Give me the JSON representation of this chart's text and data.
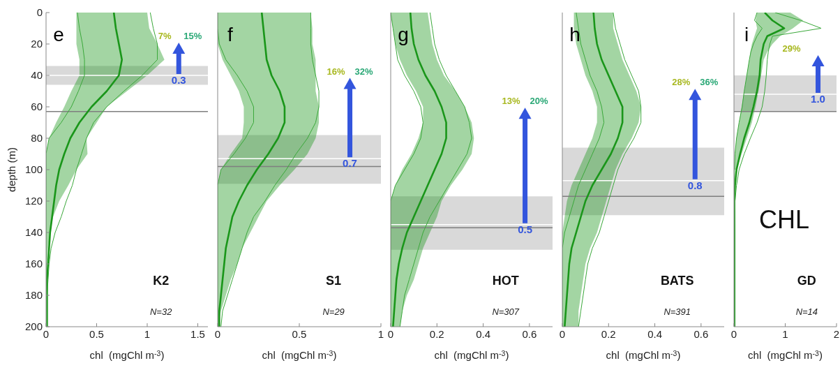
{
  "chart_data": [
    {
      "type": "line",
      "orientation": "horizontal",
      "title": "K2",
      "xlabel": "chl  (mgChl m$^{-3}$)",
      "ylabel": "depth (m)",
      "x": [
        0,
        10,
        20,
        30,
        40,
        50,
        60,
        70,
        80,
        90,
        100,
        110,
        120,
        130,
        140,
        150,
        160,
        170,
        180,
        190,
        200
      ],
      "series": [
        {
          "color": "#1a961a",
          "values": [
            0.67,
            0.69,
            0.72,
            0.75,
            0.72,
            0.6,
            0.45,
            0.33,
            0.24,
            0.18,
            0.13,
            0.1,
            0.08,
            0.06,
            0.04,
            0.03,
            0.02,
            0.01,
            0.01,
            0.01,
            0.01
          ],
          "lower": [
            0.3,
            0.3,
            0.3,
            0.33,
            0.33,
            0.25,
            0.18,
            0.1,
            0.03,
            0,
            0,
            0,
            0,
            0,
            0,
            0,
            0,
            0,
            0,
            0,
            0
          ],
          "upper": [
            1.0,
            1.02,
            1.1,
            1.17,
            1.0,
            0.8,
            0.6,
            0.5,
            0.4,
            0.41,
            0.3,
            0.22,
            0.13,
            0.07,
            0.04,
            0.02,
            0.01,
            0.01,
            0.01,
            0.01,
            0.01
          ]
        },
        {
          "color": "#3aa83a",
          "values": [
            0.31,
            0.33,
            0.36,
            0.38,
            0.38,
            0.32,
            0.25,
            0.15,
            0.03,
            0,
            0,
            0,
            0,
            0,
            0,
            0,
            0,
            0,
            0,
            0,
            0
          ]
        },
        {
          "color": "#3aa83a",
          "values": [
            1.03,
            1.06,
            1.1,
            1.1,
            0.95,
            0.77,
            0.6,
            0.47,
            0.4,
            0.35,
            0.3,
            0.26,
            0.2,
            0.15,
            0.09,
            0.05,
            0.03,
            0.02,
            0.01,
            0.01,
            0.01
          ]
        }
      ],
      "xlim": [
        0,
        1.6
      ],
      "xticks": [
        0,
        0.5,
        1,
        1.5
      ],
      "ylim": [
        200,
        0
      ],
      "yticks": [
        0,
        20,
        40,
        60,
        80,
        100,
        120,
        140,
        160,
        180,
        200
      ],
      "bands": [
        {
          "axis": "y",
          "from": 34,
          "to": 46,
          "color": "#d9d9d9"
        }
      ],
      "ref_lines": [
        {
          "axis": "y",
          "value": 40,
          "color": "#ffffff"
        },
        {
          "axis": "y",
          "value": 63,
          "color": "#7f7f7f"
        }
      ],
      "annotations": [
        "e",
        "N=32",
        "7%",
        "15%",
        "0.3"
      ]
    },
    {
      "type": "line",
      "orientation": "horizontal",
      "title": "S1",
      "xlabel": "chl  (mgChl m$^{-3}$)",
      "tick_labels": "x",
      "x": [
        0,
        10,
        20,
        30,
        40,
        50,
        60,
        70,
        80,
        90,
        100,
        110,
        120,
        130,
        140,
        150,
        160,
        170,
        180,
        190,
        200
      ],
      "series": [
        {
          "color": "#1a961a",
          "values": [
            0.27,
            0.28,
            0.29,
            0.3,
            0.33,
            0.38,
            0.41,
            0.41,
            0.37,
            0.31,
            0.24,
            0.18,
            0.13,
            0.09,
            0.07,
            0.05,
            0.04,
            0.03,
            0.02,
            0.01,
            0.01
          ],
          "lower": [
            0,
            0,
            0,
            0.03,
            0.08,
            0.13,
            0.16,
            0.16,
            0.15,
            0.08,
            0.02,
            0,
            0,
            0,
            0,
            0,
            0,
            0,
            0,
            0,
            0
          ],
          "upper": [
            0.57,
            0.58,
            0.58,
            0.6,
            0.6,
            0.6,
            0.62,
            0.62,
            0.6,
            0.55,
            0.47,
            0.38,
            0.3,
            0.25,
            0.2,
            0.15,
            0.12,
            0.08,
            0.05,
            0.02,
            0
          ]
        },
        {
          "color": "#3aa83a",
          "values": [
            0,
            0,
            0.01,
            0.05,
            0.12,
            0.18,
            0.22,
            0.22,
            0.17,
            0.1,
            0.02,
            0,
            0,
            0,
            0,
            0,
            0,
            0,
            0,
            0,
            0
          ]
        },
        {
          "color": "#3aa83a",
          "values": [
            0.57,
            0.57,
            0.57,
            0.58,
            0.6,
            0.62,
            0.62,
            0.6,
            0.55,
            0.48,
            0.42,
            0.35,
            0.29,
            0.22,
            0.18,
            0.15,
            0.12,
            0.09,
            0.06,
            0.03,
            0.02
          ]
        }
      ],
      "xlim": [
        0,
        1
      ],
      "xticks": [
        0,
        0.5,
        1
      ],
      "ylim": [
        200,
        0
      ],
      "yticks": [
        0,
        20,
        40,
        60,
        80,
        100,
        120,
        140,
        160,
        180,
        200
      ],
      "bands": [
        {
          "axis": "y",
          "from": 78,
          "to": 109,
          "color": "#d9d9d9"
        }
      ],
      "ref_lines": [
        {
          "axis": "y",
          "value": 93,
          "color": "#ffffff"
        },
        {
          "axis": "y",
          "value": 98,
          "color": "#7f7f7f"
        }
      ],
      "annotations": [
        "f",
        "N=29",
        "16%",
        "32%",
        "0.7"
      ]
    },
    {
      "type": "line",
      "orientation": "horizontal",
      "title": "HOT",
      "xlabel": "chl  (mgChl m$^{-3}$)",
      "tick_labels": "x",
      "x": [
        0,
        10,
        20,
        30,
        40,
        50,
        60,
        70,
        80,
        90,
        100,
        110,
        120,
        130,
        140,
        150,
        160,
        170,
        180,
        190,
        200
      ],
      "series": [
        {
          "color": "#1a961a",
          "values": [
            0.085,
            0.09,
            0.1,
            0.12,
            0.15,
            0.19,
            0.22,
            0.24,
            0.24,
            0.22,
            0.19,
            0.16,
            0.13,
            0.1,
            0.07,
            0.05,
            0.035,
            0.025,
            0.02,
            0.015,
            0.01
          ],
          "lower": [
            0,
            0.01,
            0.02,
            0.04,
            0.07,
            0.11,
            0.14,
            0.14,
            0.12,
            0.09,
            0.05,
            0.02,
            0,
            0,
            0,
            0,
            0,
            0,
            0,
            0,
            0
          ],
          "upper": [
            0.16,
            0.17,
            0.18,
            0.2,
            0.23,
            0.28,
            0.32,
            0.35,
            0.36,
            0.35,
            0.31,
            0.26,
            0.22,
            0.2,
            0.17,
            0.14,
            0.12,
            0.1,
            0.07,
            0.05,
            0.04
          ]
        },
        {
          "color": "#3aa83a",
          "values": [
            0,
            0.01,
            0.02,
            0.03,
            0.06,
            0.1,
            0.13,
            0.14,
            0.13,
            0.1,
            0.06,
            0.02,
            0,
            0,
            0,
            0,
            0,
            0,
            0,
            0,
            0
          ]
        },
        {
          "color": "#3aa83a",
          "values": [
            0.17,
            0.18,
            0.19,
            0.21,
            0.24,
            0.28,
            0.32,
            0.34,
            0.35,
            0.33,
            0.29,
            0.25,
            0.21,
            0.17,
            0.14,
            0.12,
            0.1,
            0.08,
            0.06,
            0.05,
            0.04
          ]
        }
      ],
      "xlim": [
        0,
        0.7
      ],
      "xticks": [
        0,
        0.2,
        0.4,
        0.6
      ],
      "ylim": [
        200,
        0
      ],
      "yticks": [
        0,
        20,
        40,
        60,
        80,
        100,
        120,
        140,
        160,
        180,
        200
      ],
      "bands": [
        {
          "axis": "y",
          "from": 117,
          "to": 151,
          "color": "#d9d9d9"
        }
      ],
      "ref_lines": [
        {
          "axis": "y",
          "value": 135,
          "color": "#ffffff"
        },
        {
          "axis": "y",
          "value": 137,
          "color": "#7f7f7f"
        }
      ],
      "annotations": [
        "g",
        "N=307",
        "13%",
        "20%",
        "0.5"
      ]
    },
    {
      "type": "line",
      "orientation": "horizontal",
      "title": "BATS",
      "xlabel": "chl  (mgChl m$^{-3}$)",
      "tick_labels": "x",
      "x": [
        0,
        10,
        20,
        30,
        40,
        50,
        60,
        70,
        80,
        90,
        100,
        110,
        120,
        130,
        140,
        150,
        160,
        170,
        180,
        190,
        200
      ],
      "series": [
        {
          "color": "#1a961a",
          "values": [
            0.135,
            0.14,
            0.15,
            0.17,
            0.2,
            0.23,
            0.26,
            0.26,
            0.24,
            0.21,
            0.17,
            0.13,
            0.1,
            0.08,
            0.06,
            0.04,
            0.03,
            0.025,
            0.02,
            0.015,
            0.01
          ],
          "lower": [
            0.05,
            0.05,
            0.06,
            0.08,
            0.1,
            0.13,
            0.15,
            0.15,
            0.13,
            0.1,
            0.07,
            0.04,
            0.02,
            0.01,
            0,
            0,
            0,
            0,
            0,
            0,
            0
          ],
          "upper": [
            0.22,
            0.22,
            0.24,
            0.26,
            0.29,
            0.32,
            0.34,
            0.33,
            0.3,
            0.26,
            0.23,
            0.21,
            0.19,
            0.17,
            0.15,
            0.12,
            0.1,
            0.09,
            0.08,
            0.07,
            0.07
          ]
        },
        {
          "color": "#3aa83a",
          "values": [
            0.06,
            0.07,
            0.08,
            0.1,
            0.12,
            0.15,
            0.17,
            0.18,
            0.16,
            0.13,
            0.1,
            0.07,
            0.05,
            0.03,
            0.01,
            0,
            0,
            0,
            0,
            0,
            0
          ]
        },
        {
          "color": "#3aa83a",
          "values": [
            0.22,
            0.23,
            0.25,
            0.27,
            0.3,
            0.33,
            0.34,
            0.34,
            0.31,
            0.27,
            0.24,
            0.22,
            0.2,
            0.18,
            0.16,
            0.13,
            0.11,
            0.1,
            0.09,
            0.08,
            0.07
          ]
        }
      ],
      "xlim": [
        0,
        0.7
      ],
      "xticks": [
        0,
        0.2,
        0.4,
        0.6
      ],
      "ylim": [
        200,
        0
      ],
      "yticks": [
        0,
        20,
        40,
        60,
        80,
        100,
        120,
        140,
        160,
        180,
        200
      ],
      "bands": [
        {
          "axis": "y",
          "from": 86,
          "to": 129,
          "color": "#d9d9d9"
        }
      ],
      "ref_lines": [
        {
          "axis": "y",
          "value": 107,
          "color": "#ffffff"
        },
        {
          "axis": "y",
          "value": 117,
          "color": "#7f7f7f"
        }
      ],
      "annotations": [
        "h",
        "N=391",
        "28%",
        "36%",
        "0.8"
      ]
    },
    {
      "type": "line",
      "orientation": "horizontal",
      "title": "GD",
      "subtitle": "CHL",
      "xlabel": "chl  (mgChl m$^{-3}$)",
      "tick_labels": "x",
      "x": [
        0,
        5,
        10,
        15,
        20,
        25,
        30,
        40,
        50,
        60,
        70,
        80,
        90,
        100,
        110,
        120,
        140,
        160,
        180,
        200
      ],
      "series": [
        {
          "color": "#1a961a",
          "values": [
            0.6,
            0.75,
            0.98,
            0.65,
            0.58,
            0.55,
            0.52,
            0.5,
            0.45,
            0.38,
            0.3,
            0.2,
            0.12,
            0.05,
            0.02,
            0.01,
            0.01,
            0.01,
            0.01,
            0.01
          ],
          "lower": [
            0.45,
            0.42,
            0.45,
            0.4,
            0.35,
            0.32,
            0.3,
            0.25,
            0.2,
            0.15,
            0.1,
            0.05,
            0.02,
            0,
            null,
            null,
            null,
            null,
            null,
            null
          ],
          "upper": [
            1.1,
            1.35,
            1.15,
            0.9,
            0.75,
            0.65,
            0.58,
            0.53,
            0.48,
            0.42,
            0.35,
            0.25,
            0.15,
            0.05,
            null,
            null,
            null,
            null,
            null,
            null
          ]
        },
        {
          "color": "#3aa83a",
          "values": [
            0.45,
            0.4,
            0.55,
            0.45,
            0.38,
            0.33,
            0.3,
            0.25,
            0.2,
            0.16,
            0.1,
            0.05,
            0.02,
            0.01,
            0.01,
            0.01,
            0.01,
            0.01,
            0.01,
            0.01
          ]
        },
        {
          "color": "#3aa83a",
          "values": [
            0.8,
            1.3,
            1.7,
            0.75,
            0.7,
            0.67,
            0.65,
            0.63,
            0.6,
            0.55,
            0.45,
            0.32,
            0.2,
            0.1,
            0.05,
            0.02,
            0.01,
            0.01,
            0.01,
            0.01
          ]
        }
      ],
      "xlim": [
        0,
        2
      ],
      "xticks": [
        0,
        1,
        2
      ],
      "ylim": [
        200,
        0
      ],
      "yticks": [
        0,
        20,
        40,
        60,
        80,
        100,
        120,
        140,
        160,
        180,
        200
      ],
      "bands": [
        {
          "axis": "y",
          "from": 40,
          "to": 63,
          "color": "#d9d9d9"
        }
      ],
      "ref_lines": [
        {
          "axis": "y",
          "value": 52,
          "color": "#ffffff"
        },
        {
          "axis": "y",
          "value": 63,
          "color": "#7f7f7f"
        }
      ],
      "annotations": [
        "i",
        "N=14",
        "29%",
        "1.0"
      ]
    }
  ]
}
